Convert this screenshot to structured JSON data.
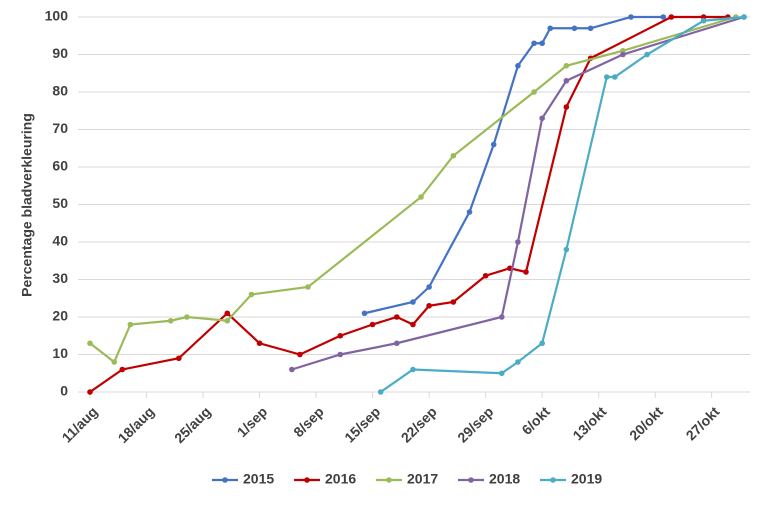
{
  "chart_data": {
    "type": "line",
    "y_label": "Percentage bladverkleuring",
    "xlim": [
      223,
      304
    ],
    "xticks": [
      {
        "value": 223,
        "label": "11/aug"
      },
      {
        "value": 230,
        "label": "18/aug"
      },
      {
        "value": 237,
        "label": "25/aug"
      },
      {
        "value": 244,
        "label": "1/sep"
      },
      {
        "value": 251,
        "label": "8/sep"
      },
      {
        "value": 258,
        "label": "15/sep"
      },
      {
        "value": 265,
        "label": "22/sep"
      },
      {
        "value": 272,
        "label": "29/sep"
      },
      {
        "value": 279,
        "label": "6/okt"
      },
      {
        "value": 286,
        "label": "13/okt"
      },
      {
        "value": 293,
        "label": "20/okt"
      },
      {
        "value": 300,
        "label": "27/okt"
      }
    ],
    "ylim": [
      0,
      100
    ],
    "yticks": [
      0,
      10,
      20,
      30,
      40,
      50,
      60,
      70,
      80,
      90,
      100
    ],
    "grid": true,
    "legend": "bottom",
    "series": [
      {
        "name": "2015",
        "color": "#4472c4",
        "x": [
          257,
          263,
          265,
          270,
          273,
          276,
          278,
          279,
          280,
          283,
          285,
          290,
          294
        ],
        "values": [
          21,
          24,
          28,
          48,
          66,
          87,
          93,
          93,
          97,
          97,
          97,
          100,
          100
        ]
      },
      {
        "name": "2016",
        "color": "#c00000",
        "x": [
          223,
          227,
          234,
          240,
          244,
          249,
          254,
          258,
          261,
          263,
          265,
          268,
          272,
          275,
          277,
          282,
          285,
          295,
          299,
          302
        ],
        "values": [
          0,
          6,
          9,
          21,
          13,
          10,
          15,
          18,
          20,
          18,
          23,
          24,
          31,
          33,
          32,
          76,
          89,
          100,
          100,
          100
        ]
      },
      {
        "name": "2017",
        "color": "#9bbb59",
        "x": [
          223,
          226,
          228,
          233,
          235,
          240,
          243,
          250,
          264,
          268,
          278,
          282,
          289,
          303
        ],
        "values": [
          13,
          8,
          18,
          19,
          20,
          19,
          26,
          28,
          52,
          63,
          80,
          87,
          91,
          100
        ]
      },
      {
        "name": "2018",
        "color": "#8064a2",
        "x": [
          248,
          254,
          261,
          274,
          276,
          279,
          282,
          289,
          304
        ],
        "values": [
          6,
          10,
          13,
          20,
          40,
          73,
          83,
          90,
          100
        ]
      },
      {
        "name": "2019",
        "color": "#4bacc6",
        "x": [
          259,
          263,
          274,
          276,
          279,
          282,
          287,
          288,
          292,
          299,
          304
        ],
        "values": [
          0,
          6,
          5,
          8,
          13,
          38,
          84,
          84,
          90,
          99,
          100
        ]
      }
    ]
  }
}
